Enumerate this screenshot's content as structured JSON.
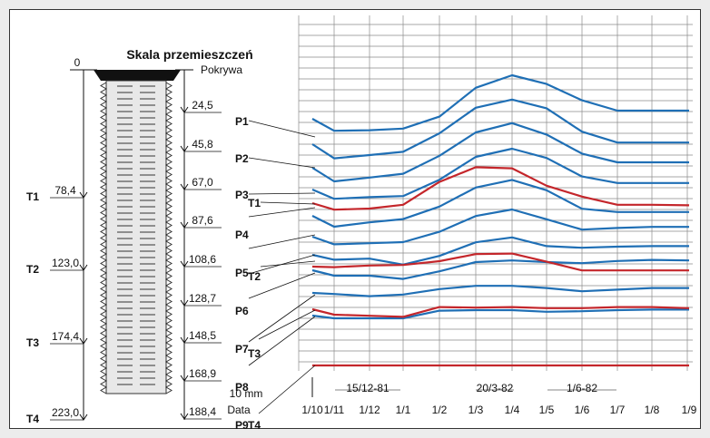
{
  "chart_data": {
    "type": "line",
    "title": "Skala przemieszczeń",
    "scale_label": "10 mm",
    "date_axis_label": "Data",
    "x_ticks": [
      "1/10",
      "1/11",
      "1/12",
      "1/1",
      "1/2",
      "1/3",
      "1/4",
      "1/5",
      "1/6",
      "1/7",
      "1/8",
      "1/9"
    ],
    "date_annotations": [
      "15/12-81",
      "20/3-82",
      "1/6-82"
    ],
    "depth_top_label": "0",
    "cover_label": "Pokrywa",
    "probe_points": [
      {
        "name": "P1",
        "depth": "24,5"
      },
      {
        "name": "P2",
        "depth": "45,8"
      },
      {
        "name": "P3",
        "depth": "67,0"
      },
      {
        "name": "P4",
        "depth": "87,6"
      },
      {
        "name": "P5",
        "depth": "108,6"
      },
      {
        "name": "P6",
        "depth": "128,7"
      },
      {
        "name": "P7",
        "depth": "148,5"
      },
      {
        "name": "P8",
        "depth": "168,9"
      },
      {
        "name": "P9",
        "depth": "188,4"
      }
    ],
    "tubes": [
      {
        "name": "T1",
        "depth": "78,4"
      },
      {
        "name": "T2",
        "depth": "123,0"
      },
      {
        "name": "T3",
        "depth": "174,4"
      },
      {
        "name": "T4",
        "depth": "223,0"
      }
    ],
    "x_range": [
      "1/10",
      "1/9"
    ],
    "colors": {
      "p_series": "#1f6fb5",
      "t_series": "#c4262b"
    },
    "series": [
      {
        "kind": "P",
        "base": 120,
        "y": [
          0,
          2.2,
          2.1,
          1.8,
          -0.4,
          -5.7,
          -8.0,
          -6.4,
          -3.4,
          -1.5,
          -1.5,
          -1.5
        ]
      },
      {
        "kind": "P",
        "base": 148,
        "y": [
          0,
          2.6,
          2.0,
          1.4,
          -2.0,
          -6.7,
          -8.2,
          -6.6,
          -2.3,
          -0.3,
          -0.3,
          -0.3
        ]
      },
      {
        "kind": "P",
        "base": 174,
        "y": [
          0,
          2.5,
          1.8,
          1.1,
          -2.2,
          -6.5,
          -8.2,
          -6.1,
          -2.6,
          -1.0,
          -1.0,
          -1.0
        ]
      },
      {
        "kind": "P",
        "base": 198,
        "y": [
          0,
          1.7,
          1.4,
          1.2,
          -1.8,
          -6.0,
          -7.5,
          -5.8,
          -2.4,
          -1.2,
          -1.2,
          -1.2
        ]
      },
      {
        "kind": "P",
        "base": 227,
        "y": [
          0,
          2.0,
          1.2,
          0.6,
          -1.7,
          -5.2,
          -6.6,
          -4.7,
          -1.3,
          -0.7,
          -0.7,
          -0.7
        ]
      },
      {
        "kind": "P",
        "base": 250,
        "y": [
          0,
          1.4,
          1.2,
          1.0,
          -0.9,
          -3.8,
          -5.0,
          -3.2,
          -1.3,
          -1.6,
          -1.8,
          -1.8
        ]
      },
      {
        "kind": "P",
        "base": 270,
        "y": [
          0,
          0.9,
          0.7,
          1.8,
          0.2,
          -2.3,
          -3.2,
          -1.6,
          -1.3,
          -1.5,
          -1.6,
          -1.6
        ]
      },
      {
        "kind": "P",
        "base": 287,
        "y": [
          0,
          1.0,
          1.0,
          1.6,
          0.2,
          -1.5,
          -1.8,
          -1.5,
          -1.3,
          -1.7,
          -1.9,
          -1.8
        ]
      },
      {
        "kind": "P",
        "base": 312,
        "y": [
          0,
          0.2,
          0.6,
          0.3,
          -0.7,
          -1.3,
          -1.3,
          -0.9,
          -0.3,
          -0.6,
          -0.9,
          -0.9
        ]
      },
      {
        "kind": "P",
        "base": 337,
        "y": [
          0,
          0.5,
          0.5,
          0.5,
          -0.9,
          -1.0,
          -1.0,
          -0.7,
          -0.8,
          -1.0,
          -1.1,
          -1.1
        ]
      },
      {
        "kind": "T",
        "base": 213,
        "y": [
          0,
          1.2,
          1.0,
          0.3,
          -3.9,
          -6.6,
          -6.4,
          -3.2,
          -1.2,
          0.3,
          0.3,
          0.4
        ]
      },
      {
        "kind": "T",
        "base": 283,
        "y": [
          0,
          0.1,
          -0.2,
          -0.3,
          -1.0,
          -2.3,
          -2.4,
          -0.9,
          0.7,
          0.7,
          0.7,
          0.7
        ]
      },
      {
        "kind": "T",
        "base": 330,
        "y": [
          0,
          1.0,
          1.2,
          1.4,
          -0.4,
          -0.3,
          -0.4,
          -0.2,
          -0.2,
          -0.4,
          -0.4,
          -0.2
        ]
      },
      {
        "kind": "T",
        "base": 392,
        "y": [
          0,
          0,
          0,
          0,
          0,
          0,
          0,
          0,
          0,
          0,
          0,
          0
        ]
      }
    ]
  }
}
